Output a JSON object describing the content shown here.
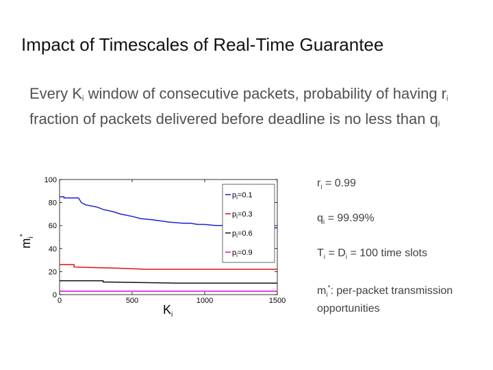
{
  "slide": {
    "title": "Impact of Timescales of Real-Time Guarantee",
    "description": {
      "part1": "Every K",
      "sub1": "i",
      "part2": " window of consecutive packets, probability of having r",
      "sub2": "i",
      "part3": " fraction of packets delivered before deadline is no less than q",
      "sub3": "i"
    }
  },
  "notes": {
    "r": {
      "sym": "r",
      "sub": "i",
      "text": " = 0.99"
    },
    "q": {
      "sym": "q",
      "sub": "i",
      "text": " = 99.99%"
    },
    "t": {
      "sym1": "T",
      "sub1": "i",
      "mid": " = D",
      "sub2": "i",
      "text": " = 100 time slots"
    },
    "m": {
      "sym": "m",
      "sub": "i",
      "sup": "*",
      "text": ": per-packet transmission opportunities"
    }
  },
  "chart_data": {
    "type": "line",
    "xlabel": "K",
    "xlabel_sub": "i",
    "ylabel": "m",
    "ylabel_sub": "i",
    "ylabel_sup": "*",
    "xlim": [
      0,
      1500
    ],
    "ylim": [
      0,
      100
    ],
    "xticks": [
      "0",
      "500",
      "1000",
      "1500"
    ],
    "yticks": [
      "0",
      "20",
      "40",
      "60",
      "80",
      "100"
    ],
    "legend_position": "top-right",
    "colors": {
      "blue": "#1f1fd0",
      "red": "#e01010",
      "black": "#111111",
      "magenta": "#e000e0"
    },
    "series": [
      {
        "name": "p_i=0.1",
        "label_pre": "p",
        "label_sub": "i",
        "label_post": "=0.1",
        "color": "#1f1fd0",
        "x": [
          0,
          30,
          30,
          130,
          150,
          180,
          260,
          300,
          370,
          420,
          500,
          560,
          640,
          700,
          760,
          850,
          900,
          950,
          1000,
          1080,
          1150,
          1250,
          1350,
          1500
        ],
        "y": [
          85,
          85,
          84,
          84,
          80,
          78,
          76,
          74,
          72,
          70,
          68,
          66,
          65,
          64,
          63,
          62,
          62,
          61,
          61,
          60,
          60,
          59,
          59,
          58
        ]
      },
      {
        "name": "p_i=0.3",
        "label_pre": "p",
        "label_sub": "i",
        "label_post": "=0.3",
        "color": "#e01010",
        "x": [
          0,
          100,
          100,
          400,
          600,
          1000,
          1500
        ],
        "y": [
          26,
          26,
          24,
          23,
          22,
          22,
          22
        ]
      },
      {
        "name": "p_i=0.6",
        "label_pre": "p",
        "label_sub": "i",
        "label_post": "=0.6",
        "color": "#111111",
        "x": [
          0,
          300,
          300,
          800,
          1500
        ],
        "y": [
          12,
          12,
          11,
          10,
          10
        ]
      },
      {
        "name": "p_i=0.9",
        "label_pre": "p",
        "label_sub": "i",
        "label_post": "=0.9",
        "color": "#e000e0",
        "x": [
          0,
          500,
          1000,
          1500
        ],
        "y": [
          3,
          3,
          3,
          3
        ]
      }
    ]
  }
}
